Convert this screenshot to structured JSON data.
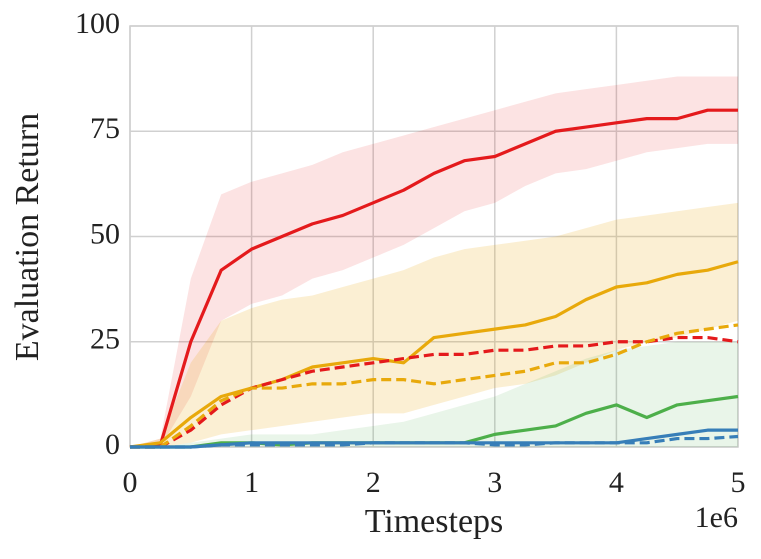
{
  "chart_data": {
    "type": "line",
    "x_label": "Timesteps",
    "y_label": "Evaluation Return",
    "x_offset_label": "1e6",
    "x": [
      0,
      0.25,
      0.5,
      0.75,
      1,
      1.25,
      1.5,
      1.75,
      2,
      2.25,
      2.5,
      2.75,
      3,
      3.25,
      3.5,
      3.75,
      4,
      4.25,
      4.5,
      4.75,
      5
    ],
    "xlim": [
      0,
      5
    ],
    "xticks": [
      0,
      1,
      2,
      3,
      4,
      5
    ],
    "ylim": [
      0,
      100
    ],
    "yticks": [
      0,
      25,
      50,
      75,
      100
    ],
    "grid": true,
    "series": [
      {
        "color": "#e41a1c",
        "dash": false,
        "band_opacity": 0.12,
        "values": [
          0,
          0.5,
          25,
          42,
          47,
          50,
          53,
          55,
          58,
          61,
          65,
          68,
          69,
          72,
          75,
          76,
          77,
          78,
          78,
          80,
          80
        ],
        "upper": [
          0,
          2,
          40,
          60,
          63,
          65,
          67,
          70,
          72,
          74,
          76,
          78,
          80,
          82,
          84,
          85,
          86,
          87,
          88,
          88,
          88
        ],
        "lower": [
          0,
          0,
          12,
          30,
          34,
          36,
          40,
          42,
          45,
          48,
          52,
          56,
          58,
          62,
          65,
          66,
          68,
          70,
          71,
          72,
          72
        ]
      },
      {
        "color": "#e8a90b",
        "dash": false,
        "band_opacity": 0.18,
        "values": [
          0,
          1,
          7,
          12,
          14,
          16,
          19,
          20,
          21,
          20,
          26,
          27,
          28,
          29,
          31,
          35,
          38,
          39,
          41,
          42,
          44
        ],
        "upper": [
          0,
          2,
          20,
          30,
          33,
          35,
          36,
          38,
          40,
          42,
          45,
          47,
          48,
          49,
          50,
          52,
          54,
          55,
          56,
          57,
          58
        ],
        "lower": [
          0,
          0,
          1,
          3,
          4,
          5,
          6,
          7,
          8,
          8,
          10,
          12,
          14,
          15,
          17,
          20,
          23,
          25,
          26,
          28,
          30
        ]
      },
      {
        "color": "#e41a1c",
        "dash": true,
        "values": [
          0,
          0,
          4,
          10,
          14,
          16,
          18,
          19,
          20,
          21,
          22,
          22,
          23,
          23,
          24,
          24,
          25,
          25,
          26,
          26,
          25
        ]
      },
      {
        "color": "#e8a90b",
        "dash": true,
        "values": [
          0,
          0,
          5,
          11,
          14,
          14,
          15,
          15,
          16,
          16,
          15,
          16,
          17,
          18,
          20,
          20,
          22,
          25,
          27,
          28,
          29
        ]
      },
      {
        "color": "#4daf4a",
        "dash": false,
        "band_opacity": 0.12,
        "values": [
          0,
          0,
          0,
          1,
          1,
          0.5,
          1,
          1,
          1,
          1,
          1,
          1,
          3,
          4,
          5,
          8,
          10,
          7,
          10,
          11,
          12
        ],
        "upper": [
          0,
          0,
          1,
          2,
          3,
          3,
          3,
          4,
          5,
          6,
          8,
          10,
          12,
          15,
          18,
          21,
          23,
          24,
          25,
          25,
          25
        ],
        "lower": [
          0,
          0,
          0,
          0,
          0,
          0,
          0,
          0,
          0,
          0,
          0,
          0,
          0,
          0,
          0,
          0,
          0,
          0,
          0,
          0,
          0
        ]
      },
      {
        "color": "#377eb8",
        "dash": false,
        "values": [
          0,
          0,
          0,
          0.5,
          1,
          1,
          1,
          1,
          1,
          1,
          1,
          1,
          1,
          1,
          1,
          1,
          1,
          2,
          3,
          4,
          4
        ]
      },
      {
        "color": "#377eb8",
        "dash": true,
        "values": [
          0,
          0,
          0,
          0.5,
          0.5,
          0.5,
          0.5,
          0.5,
          1,
          1,
          1,
          1,
          0.5,
          0.5,
          1,
          1,
          1,
          1,
          2,
          2,
          2.5
        ]
      }
    ]
  }
}
